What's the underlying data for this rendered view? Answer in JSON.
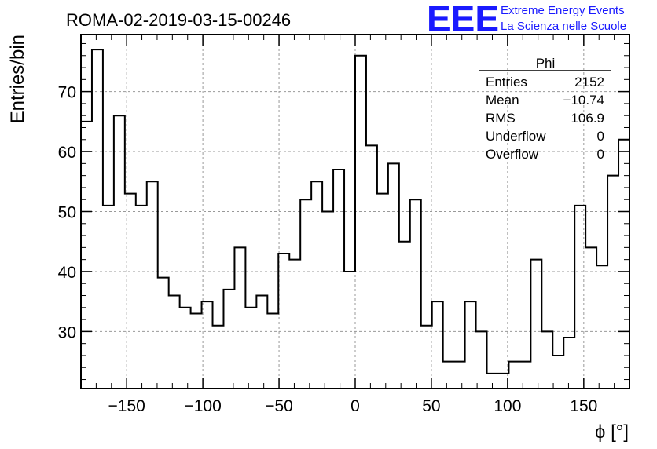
{
  "chart_data": {
    "type": "bar",
    "title": "ROMA-02-2019-03-15-00246",
    "xlabel": "ϕ [°]",
    "ylabel": "Entries/bin",
    "xlim": [
      -180,
      180
    ],
    "ylim": [
      20.5,
      79.5
    ],
    "grid": true,
    "x_ticks": [
      -150,
      -100,
      -50,
      0,
      50,
      100,
      150
    ],
    "x_tick_labels": [
      "−150",
      "−100",
      "−50",
      "0",
      "50",
      "100",
      "150"
    ],
    "y_ticks": [
      30,
      40,
      50,
      60,
      70
    ],
    "bin_width": 7.2,
    "bin_edges_start": -180,
    "values": [
      65,
      77,
      51,
      66,
      53,
      51,
      55,
      39,
      36,
      34,
      33,
      35,
      31,
      37,
      44,
      34,
      36,
      33,
      43,
      42,
      52,
      55,
      50,
      57,
      40,
      76,
      61,
      53,
      58,
      45,
      52,
      31,
      35,
      25,
      25,
      35,
      30,
      23,
      23,
      25,
      25,
      42,
      30,
      26,
      29,
      51,
      44,
      41,
      56,
      62
    ],
    "stats_box": {
      "title": "Phi",
      "rows": [
        {
          "label": "Entries",
          "value": "2152"
        },
        {
          "label": "Mean",
          "value": "−10.74"
        },
        {
          "label": "RMS",
          "value": "106.9"
        },
        {
          "label": "Underflow",
          "value": "0"
        },
        {
          "label": "Overflow",
          "value": "0"
        }
      ]
    }
  },
  "logo": {
    "mark": "EEE",
    "line1": "Extreme Energy Events",
    "line2": "La Scienza nelle Scuole",
    "color": "#1a1aff"
  }
}
